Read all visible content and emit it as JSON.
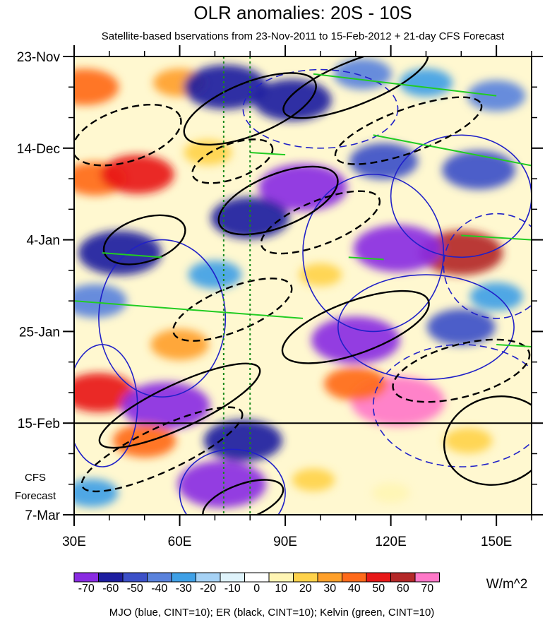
{
  "chart_data": {
    "type": "heatmap",
    "title": "OLR anomalies: 20S - 10S",
    "subtitle": "Satellite-based bservations from 23-Nov-2011 to 15-Feb-2012 + 21-day CFS Forecast",
    "x_ticks": [
      "30E",
      "60E",
      "90E",
      "120E",
      "150E"
    ],
    "x_tick_values": [
      30,
      60,
      90,
      120,
      150
    ],
    "xlim": [
      30,
      160
    ],
    "y_ticks": [
      "23-Nov",
      "14-Dec",
      "4-Jan",
      "25-Jan",
      "15-Feb",
      "7-Mar"
    ],
    "y_tick_values": [
      0,
      21,
      42,
      63,
      84,
      105
    ],
    "ylim_days": [
      0,
      105
    ],
    "forecast_start_label": "15-Feb",
    "forecast_start_day": 84,
    "forecast_label_lines": [
      "CFS",
      "Forecast"
    ],
    "reference_lines_lon": [
      72.5,
      80
    ],
    "colorbar": {
      "levels": [
        -70,
        -60,
        -50,
        -40,
        -30,
        -20,
        -10,
        0,
        10,
        20,
        30,
        40,
        50,
        60,
        70
      ],
      "labels": [
        "-70",
        "-60",
        "-50",
        "-40",
        "-30",
        "-20",
        "-10",
        "0",
        "10",
        "20",
        "30",
        "40",
        "50",
        "60",
        "70"
      ],
      "colors": [
        "#8a2be2",
        "#1e1ea0",
        "#3c50c8",
        "#5a82dc",
        "#3fa0e6",
        "#a6d2f5",
        "#dff3fb",
        "#ffffff",
        "#fff5b4",
        "#ffd24a",
        "#ffa02a",
        "#ff6a1a",
        "#e81818",
        "#b42828",
        "#ff78c8"
      ],
      "unit": "W/m^2"
    },
    "footer": "MJO (blue, CINT=10); ER (black, CINT=10); Kelvin (green, CINT=10)",
    "anomaly_features": [
      {
        "lon": 33,
        "day": 7,
        "value": 45
      },
      {
        "lon": 60,
        "day": 6,
        "value": 30
      },
      {
        "lon": 73,
        "day": 7,
        "value": -60
      },
      {
        "lon": 92,
        "day": 10,
        "value": -55
      },
      {
        "lon": 112,
        "day": 4,
        "value": -35
      },
      {
        "lon": 130,
        "day": 6,
        "value": -30
      },
      {
        "lon": 150,
        "day": 9,
        "value": -35
      },
      {
        "lon": 36,
        "day": 28,
        "value": 40
      },
      {
        "lon": 48,
        "day": 27,
        "value": 50
      },
      {
        "lon": 68,
        "day": 22,
        "value": 25
      },
      {
        "lon": 95,
        "day": 30,
        "value": -65
      },
      {
        "lon": 80,
        "day": 37,
        "value": -55
      },
      {
        "lon": 118,
        "day": 24,
        "value": -45
      },
      {
        "lon": 145,
        "day": 26,
        "value": -50
      },
      {
        "lon": 140,
        "day": 45,
        "value": 60
      },
      {
        "lon": 122,
        "day": 44,
        "value": -65
      },
      {
        "lon": 43,
        "day": 45,
        "value": -60
      },
      {
        "lon": 36,
        "day": 56,
        "value": -40
      },
      {
        "lon": 70,
        "day": 50,
        "value": -30
      },
      {
        "lon": 60,
        "day": 66,
        "value": 35
      },
      {
        "lon": 110,
        "day": 65,
        "value": -65
      },
      {
        "lon": 140,
        "day": 62,
        "value": -45
      },
      {
        "lon": 37,
        "day": 77,
        "value": 50
      },
      {
        "lon": 56,
        "day": 80,
        "value": -65
      },
      {
        "lon": 78,
        "day": 88,
        "value": -55
      },
      {
        "lon": 122,
        "day": 79,
        "value": 70
      },
      {
        "lon": 110,
        "day": 75,
        "value": 40
      },
      {
        "lon": 50,
        "day": 88,
        "value": 40
      },
      {
        "lon": 142,
        "day": 88,
        "value": 25
      },
      {
        "lon": 72,
        "day": 98,
        "value": -65
      },
      {
        "lon": 35,
        "day": 100,
        "value": -30
      },
      {
        "lon": 120,
        "day": 100,
        "value": 15
      },
      {
        "lon": 98,
        "day": 97,
        "value": 20
      },
      {
        "lon": 150,
        "day": 55,
        "value": -30
      },
      {
        "lon": 100,
        "day": 50,
        "value": 20
      }
    ],
    "mjo_contours": [
      {
        "lon": 38,
        "day": 80,
        "rlon": 10,
        "rday": 14,
        "tilt": 0,
        "dash": false
      },
      {
        "lon": 55,
        "day": 60,
        "rlon": 18,
        "rday": 18,
        "tilt": 0,
        "dash": false
      },
      {
        "lon": 115,
        "day": 45,
        "rlon": 20,
        "rday": 18,
        "tilt": 0,
        "dash": false
      },
      {
        "lon": 140,
        "day": 32,
        "rlon": 20,
        "rday": 14,
        "tilt": 0,
        "dash": false
      },
      {
        "lon": 130,
        "day": 62,
        "rlon": 25,
        "rday": 12,
        "tilt": 0,
        "dash": false
      },
      {
        "lon": 75,
        "day": 100,
        "rlon": 15,
        "rday": 10,
        "tilt": 0,
        "dash": false
      },
      {
        "lon": 100,
        "day": 12,
        "rlon": 22,
        "rday": 9,
        "tilt": 0,
        "dash": true
      },
      {
        "lon": 140,
        "day": 80,
        "rlon": 25,
        "rday": 14,
        "tilt": 0,
        "dash": true
      },
      {
        "lon": 150,
        "day": 48,
        "rlon": 15,
        "rday": 12,
        "tilt": 0,
        "dash": true
      }
    ],
    "er_contours": [
      {
        "lon": 80,
        "day": 12,
        "rlon": 20,
        "rday": 6,
        "tilt": -22,
        "dash": false
      },
      {
        "lon": 110,
        "day": 6,
        "rlon": 22,
        "rday": 5,
        "tilt": -22,
        "dash": false
      },
      {
        "lon": 88,
        "day": 33,
        "rlon": 18,
        "rday": 6,
        "tilt": -22,
        "dash": false
      },
      {
        "lon": 50,
        "day": 42,
        "rlon": 12,
        "rday": 5,
        "tilt": -18,
        "dash": false
      },
      {
        "lon": 110,
        "day": 62,
        "rlon": 22,
        "rday": 6,
        "tilt": -20,
        "dash": false
      },
      {
        "lon": 60,
        "day": 80,
        "rlon": 25,
        "rday": 5,
        "tilt": -25,
        "dash": false
      },
      {
        "lon": 78,
        "day": 102,
        "rlon": 12,
        "rday": 4,
        "tilt": -20,
        "dash": false
      },
      {
        "lon": 150,
        "day": 88,
        "rlon": 15,
        "rday": 10,
        "tilt": -15,
        "dash": false
      },
      {
        "lon": 45,
        "day": 18,
        "rlon": 16,
        "rday": 6,
        "tilt": -18,
        "dash": true
      },
      {
        "lon": 75,
        "day": 24,
        "rlon": 12,
        "rday": 4,
        "tilt": -20,
        "dash": true
      },
      {
        "lon": 100,
        "day": 38,
        "rlon": 18,
        "rday": 5,
        "tilt": -22,
        "dash": true
      },
      {
        "lon": 75,
        "day": 58,
        "rlon": 18,
        "rday": 5,
        "tilt": -22,
        "dash": true
      },
      {
        "lon": 55,
        "day": 90,
        "rlon": 25,
        "rday": 5,
        "tilt": -25,
        "dash": true
      },
      {
        "lon": 140,
        "day": 72,
        "rlon": 20,
        "rday": 6,
        "tilt": -15,
        "dash": true
      },
      {
        "lon": 125,
        "day": 17,
        "rlon": 22,
        "rday": 5,
        "tilt": -20,
        "dash": true
      }
    ],
    "kelvin_lines": [
      {
        "lon1": 30,
        "day1": 56,
        "lon2": 95,
        "day2": 60
      },
      {
        "lon1": 38,
        "day1": 45,
        "lon2": 55,
        "day2": 46
      },
      {
        "lon1": 98,
        "day1": 4,
        "lon2": 150,
        "day2": 9
      },
      {
        "lon1": 115,
        "day1": 18,
        "lon2": 160,
        "day2": 25
      },
      {
        "lon1": 140,
        "day1": 41,
        "lon2": 160,
        "day2": 42
      },
      {
        "lon1": 80,
        "day1": 22,
        "lon2": 90,
        "day2": 22.5
      },
      {
        "lon1": 108,
        "day1": 46,
        "lon2": 118,
        "day2": 46.5
      },
      {
        "lon1": 150,
        "day1": 66,
        "lon2": 160,
        "day2": 66.5
      }
    ]
  }
}
